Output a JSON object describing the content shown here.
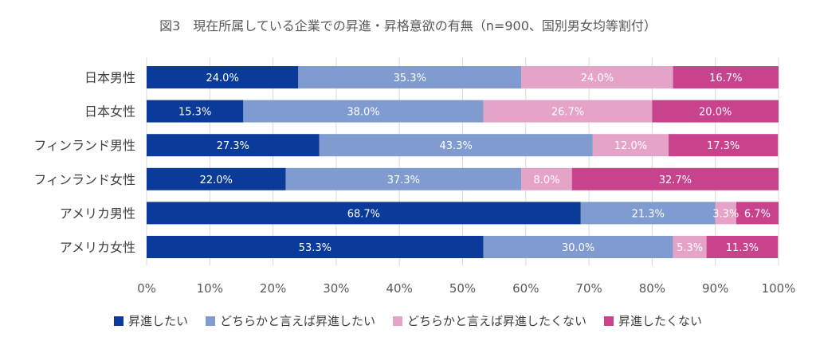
{
  "chart_data": {
    "type": "bar",
    "orientation": "horizontal",
    "stacked": true,
    "title": "図3　現在所属している企業での昇進・昇格意欲の有無（n=900、国別男女均等割付）",
    "categories": [
      "日本男性",
      "日本女性",
      "フィンランド男性",
      "フィンランド女性",
      "アメリカ男性",
      "アメリカ女性"
    ],
    "series": [
      {
        "name": "昇進したい",
        "color": "#0A3B9A",
        "values": [
          24.0,
          15.3,
          27.3,
          22.0,
          68.7,
          53.3
        ]
      },
      {
        "name": "どちらかと言えば昇進したい",
        "color": "#7F9BD0",
        "values": [
          35.3,
          38.0,
          43.3,
          37.3,
          21.3,
          30.0
        ]
      },
      {
        "name": "どちらかと言えば昇進したくない",
        "color": "#E6A3C8",
        "values": [
          24.0,
          26.7,
          12.0,
          8.0,
          3.3,
          5.3
        ]
      },
      {
        "name": "昇進したくない",
        "color": "#C8438C",
        "values": [
          16.7,
          20.0,
          17.3,
          32.7,
          6.7,
          11.3
        ]
      }
    ],
    "data_labels": [
      [
        "24.0%",
        "15.3%",
        "27.3%",
        "22.0%",
        "68.7%",
        "53.3%"
      ],
      [
        "35.3%",
        "38.0%",
        "43.3%",
        "37.3%",
        "21.3%",
        "30.0%"
      ],
      [
        "24.0%",
        "26.7%",
        "12.0%",
        "8.0%",
        "3.3%",
        "5.3%"
      ],
      [
        "16.7%",
        "20.0%",
        "17.3%",
        "32.7%",
        "6.7%",
        "11.3%"
      ]
    ],
    "xlim": [
      0,
      100
    ],
    "x_ticks": [
      0,
      10,
      20,
      30,
      40,
      50,
      60,
      70,
      80,
      90,
      100
    ],
    "x_tick_labels": [
      "0%",
      "10%",
      "20%",
      "30%",
      "40%",
      "50%",
      "60%",
      "70%",
      "80%",
      "90%",
      "100%"
    ],
    "grid": true,
    "legend_position": "bottom"
  }
}
